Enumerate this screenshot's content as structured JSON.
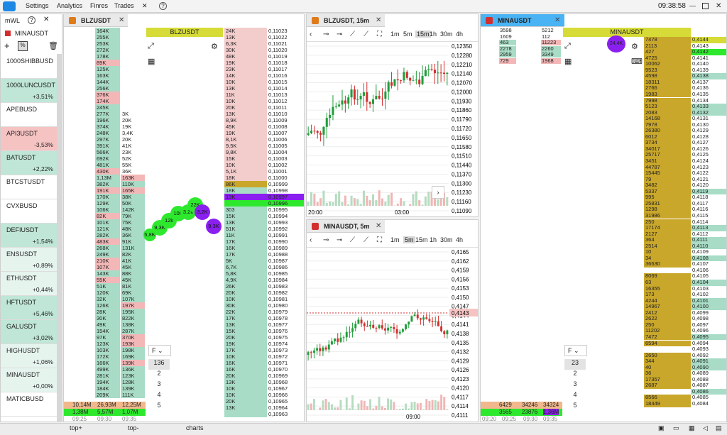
{
  "menu": {
    "settings": "Settings",
    "analytics": "Analytics",
    "finres": "Finres",
    "trades": "Trades",
    "clock": "09:38:58"
  },
  "watchlist": {
    "title": "mWL",
    "help": "?",
    "selected": "MINAUSDT",
    "items": [
      {
        "name": "1000SHIBBUSD",
        "change": "",
        "color": "#ffffff"
      },
      {
        "name": "1000LUNCUSDT",
        "change": "+3,51%",
        "color": "#bfe6d6"
      },
      {
        "name": "APEBUSD",
        "change": "",
        "color": "#ffffff"
      },
      {
        "name": "API3USDT",
        "change": "-3,53%",
        "color": "#f6c3c3"
      },
      {
        "name": "BATUSDT",
        "change": "+2,22%",
        "color": "#bfe6d6"
      },
      {
        "name": "BTCSTUSDT",
        "change": "",
        "color": "#ffffff"
      },
      {
        "name": "CVXBUSD",
        "change": "",
        "color": "#ffffff"
      },
      {
        "name": "DEFIUSDT",
        "change": "+1,54%",
        "color": "#bfe6d6"
      },
      {
        "name": "ENSUSDT",
        "change": "+0,89%",
        "color": "#e6f4ee"
      },
      {
        "name": "ETHUSDT",
        "change": "+0,44%",
        "color": "#e6f4ee"
      },
      {
        "name": "HFTUSDT",
        "change": "+5,46%",
        "color": "#bfe6d6"
      },
      {
        "name": "GALUSDT",
        "change": "+3,02%",
        "color": "#bfe6d6"
      },
      {
        "name": "HIGHUSDT",
        "change": "+1,06%",
        "color": "#e6f4ee"
      },
      {
        "name": "MINAUSDT",
        "change": "+0,00%",
        "color": "#e6f4ee"
      },
      {
        "name": "MATICBUSD",
        "change": "",
        "color": "#ffffff"
      }
    ]
  },
  "blz": {
    "tab": "BLZUSDT",
    "label": "BLZUSDT",
    "filter": "F",
    "filter_opts": [
      "136",
      "2",
      "3",
      "4",
      "5"
    ],
    "times": [
      "09:25",
      "09:30",
      "09:35"
    ],
    "vol1": [
      "164K",
      "255K",
      "253K",
      "272K",
      "178K",
      "89K",
      "125K",
      "163K",
      "144K",
      "256K",
      "376K",
      "174K",
      "245K",
      "277K",
      "196K",
      "374K",
      "248K",
      "297K",
      "391K",
      "566K",
      "692K",
      "481K",
      "430K",
      "1,13M",
      "382K",
      "191K",
      "170K",
      "129K",
      "106K",
      "82K",
      "101K",
      "121K",
      "282K",
      "483K",
      "268K",
      "249K",
      "210K",
      "107K",
      "143K",
      "55K",
      "51K",
      "120K",
      "32K",
      "126K",
      "28K",
      "30K",
      "49K",
      "154K",
      "97K",
      "123K",
      "103K",
      "172K",
      "166K",
      "499K",
      "281K",
      "194K",
      "184K",
      "209K"
    ],
    "vol2": [
      "",
      "",
      "",
      "",
      "",
      "",
      "",
      "",
      "",
      "",
      "",
      "",
      "",
      "3K",
      "20K",
      "19K",
      "3,4K",
      "20K",
      "41K",
      "23K",
      "52K",
      "55K",
      "36K",
      "163K",
      "110K",
      "165K",
      "38K",
      "50K",
      "142K",
      "79K",
      "75K",
      "48K",
      "36K",
      "91K",
      "131K",
      "82K",
      "41K",
      "45K",
      "88K",
      "45K",
      "81K",
      "69K",
      "107K",
      "197K",
      "195K",
      "822K",
      "138K",
      "287K",
      "370K",
      "193K",
      "198K",
      "169K",
      "139K",
      "136K",
      "123K",
      "128K",
      "139K",
      "111K"
    ],
    "dom_vol": [
      "24K",
      "13K",
      "6,3K",
      "30K",
      "48K",
      "19K",
      "23K",
      "14K",
      "10K",
      "13K",
      "11K",
      "10K",
      "20K",
      "13K",
      "8,9K",
      "45K",
      "19K",
      "8,1K",
      "9,5K",
      "9,8K",
      "15K",
      "10K",
      "5,1K",
      "18K",
      "86K",
      "18K",
      "13K",
      "",
      "303",
      "15K",
      "13K",
      "51K",
      "11K",
      "17K",
      "16K",
      "17K",
      "5K",
      "6,7K",
      "5,8K",
      "4,9K",
      "26K",
      "20K",
      "10K",
      "30K",
      "22K",
      "17K",
      "13K",
      "15K",
      "20K",
      "19K",
      "17K",
      "10K",
      "16K",
      "16K",
      "20K",
      "13K",
      "10K",
      "10K",
      "20K",
      "13K"
    ],
    "prices": [
      "0,11023",
      "0,11022",
      "0,11021",
      "0,11020",
      "0,11019",
      "0,11018",
      "0,11017",
      "0,11016",
      "0,11015",
      "0,11014",
      "0,11013",
      "0,11012",
      "0,11011",
      "0,11010",
      "0,11009",
      "0,11008",
      "0,11007",
      "0,11006",
      "0,11005",
      "0,11004",
      "0,11003",
      "0,11002",
      "0,11001",
      "0,11000",
      "0,10999",
      "0,10998",
      "0,10997",
      "0,10996",
      "0,10995",
      "0,10994",
      "0,10993",
      "0,10992",
      "0,10991",
      "0,10990",
      "0,10989",
      "0,10988",
      "0,10987",
      "0,10986",
      "0,10985",
      "0,10984",
      "0,10983",
      "0,10982",
      "0,10981",
      "0,10980",
      "0,10979",
      "0,10978",
      "0,10977",
      "0,10976",
      "0,10975",
      "0,10974",
      "0,10973",
      "0,10972",
      "0,10971",
      "0,10970",
      "0,10969",
      "0,10968",
      "0,10967",
      "0,10966",
      "0,10965",
      "0,10964",
      "0,10963"
    ],
    "bubbles": [
      "5,8K",
      "9,3K",
      "12k",
      "10K",
      "3,2k",
      "22K",
      "3,2K",
      "9,3K"
    ],
    "foot": {
      "a": "10,14M",
      "b": "26,93M",
      "c": "12,25M",
      "d": "1,38M",
      "e": "5,57M",
      "f": "1,07M"
    }
  },
  "chart_blz": {
    "tab": "BLZUSDT, 15m",
    "tfs": [
      "1m",
      "5m",
      "15m",
      "1h",
      "30m",
      "4h"
    ],
    "selected_tf": "15m",
    "yticks": [
      "0,12350",
      "0,12280",
      "0,12210",
      "0,12140",
      "0,12070",
      "0,12000",
      "0,11930",
      "0,11860",
      "0,11790",
      "0,11720",
      "0,11650",
      "0,11580",
      "0,11510",
      "0,11440",
      "0,11370",
      "0,11300",
      "0,11230",
      "0,11160",
      "0,11090"
    ],
    "xticks": [
      "20:00",
      "03:00"
    ]
  },
  "chart_mina": {
    "tab": "MINAUSDT, 5m",
    "tfs": [
      "1m",
      "5m",
      "15m",
      "1h",
      "30m",
      "4h"
    ],
    "selected_tf": "5m",
    "yticks": [
      "0,4165",
      "0,4162",
      "0,4159",
      "0,4156",
      "0,4153",
      "0,4150",
      "0,4147",
      "0,4144",
      "0,4141",
      "0,4138",
      "0,4135",
      "0,4132",
      "0,4129",
      "0,4126",
      "0,4123",
      "0,4120",
      "0,4117",
      "0,4114",
      "0,4111"
    ],
    "last": "0,4143",
    "xticks": [
      "09:00"
    ]
  },
  "mina": {
    "tab": "MINAUSDT",
    "label": "MINAUSDT",
    "filter": "F",
    "filter_opts": [
      "23",
      "2",
      "3",
      "4",
      "5"
    ],
    "top_left": [
      "3598",
      "1609",
      "463",
      "2278",
      "2959",
      "729"
    ],
    "top_right": [
      "5212",
      "112",
      "11223",
      "2260",
      "3349",
      "1968"
    ],
    "bubble": "24,4K",
    "vols": [
      "7478",
      "2113",
      "427",
      "4725",
      "10062",
      "9523",
      "4598",
      "18311",
      "2766",
      "1983",
      "7998",
      "5123",
      "2083",
      "14168",
      "7978",
      "26380",
      "6012",
      "3734",
      "34017",
      "25717",
      "3451",
      "44787",
      "15445",
      "79",
      "3482",
      "5337",
      "995",
      "25831",
      "1298",
      "31986",
      "250",
      "17174",
      "2127",
      "364",
      "2514",
      "10",
      "34",
      "36630",
      "",
      "8069",
      "63",
      "16355",
      "173",
      "4244",
      "14967",
      "2412",
      "2622",
      "250",
      "11202",
      "7472",
      "6594",
      "",
      "2650",
      "344",
      "40",
      "36",
      "17357",
      "2687",
      "",
      "8566",
      "18449"
    ],
    "prices": [
      "0,4144",
      "0,4143",
      "0,4142",
      "0,4141",
      "0,4140",
      "0,4139",
      "0,4138",
      "0,4137",
      "0,4136",
      "0,4135",
      "0,4134",
      "0,4133",
      "0,4132",
      "0,4131",
      "0,4130",
      "0,4129",
      "0,4128",
      "0,4127",
      "0,4126",
      "0,4125",
      "0,4124",
      "0,4123",
      "0,4122",
      "0,4121",
      "0,4120",
      "0,4119",
      "0,4118",
      "0,4117",
      "0,4116",
      "0,4115",
      "0,4114",
      "0,4113",
      "0,4112",
      "0,4111",
      "0,4110",
      "0,4109",
      "0,4108",
      "0,4107",
      "0,4106",
      "0,4105",
      "0,4104",
      "0,4103",
      "0,4102",
      "0,4101",
      "0,4100",
      "0,4099",
      "0,4098",
      "0,4097",
      "0,4096",
      "0,4095",
      "0,4094",
      "0,4093",
      "0,4092",
      "0,4091",
      "0,4090",
      "0,4089",
      "0,4088",
      "0,4087",
      "0,4086",
      "0,4085",
      "0,4084"
    ],
    "foot": {
      "a": "6429",
      "b": "34246",
      "c": "34324",
      "d": "3565",
      "e": "23876",
      "f": "1,36M"
    },
    "times": [
      "09:20",
      "09:25",
      "09:30",
      "09:35"
    ]
  },
  "bottom": {
    "tabs": [
      "top+",
      "top-",
      "charts"
    ]
  }
}
